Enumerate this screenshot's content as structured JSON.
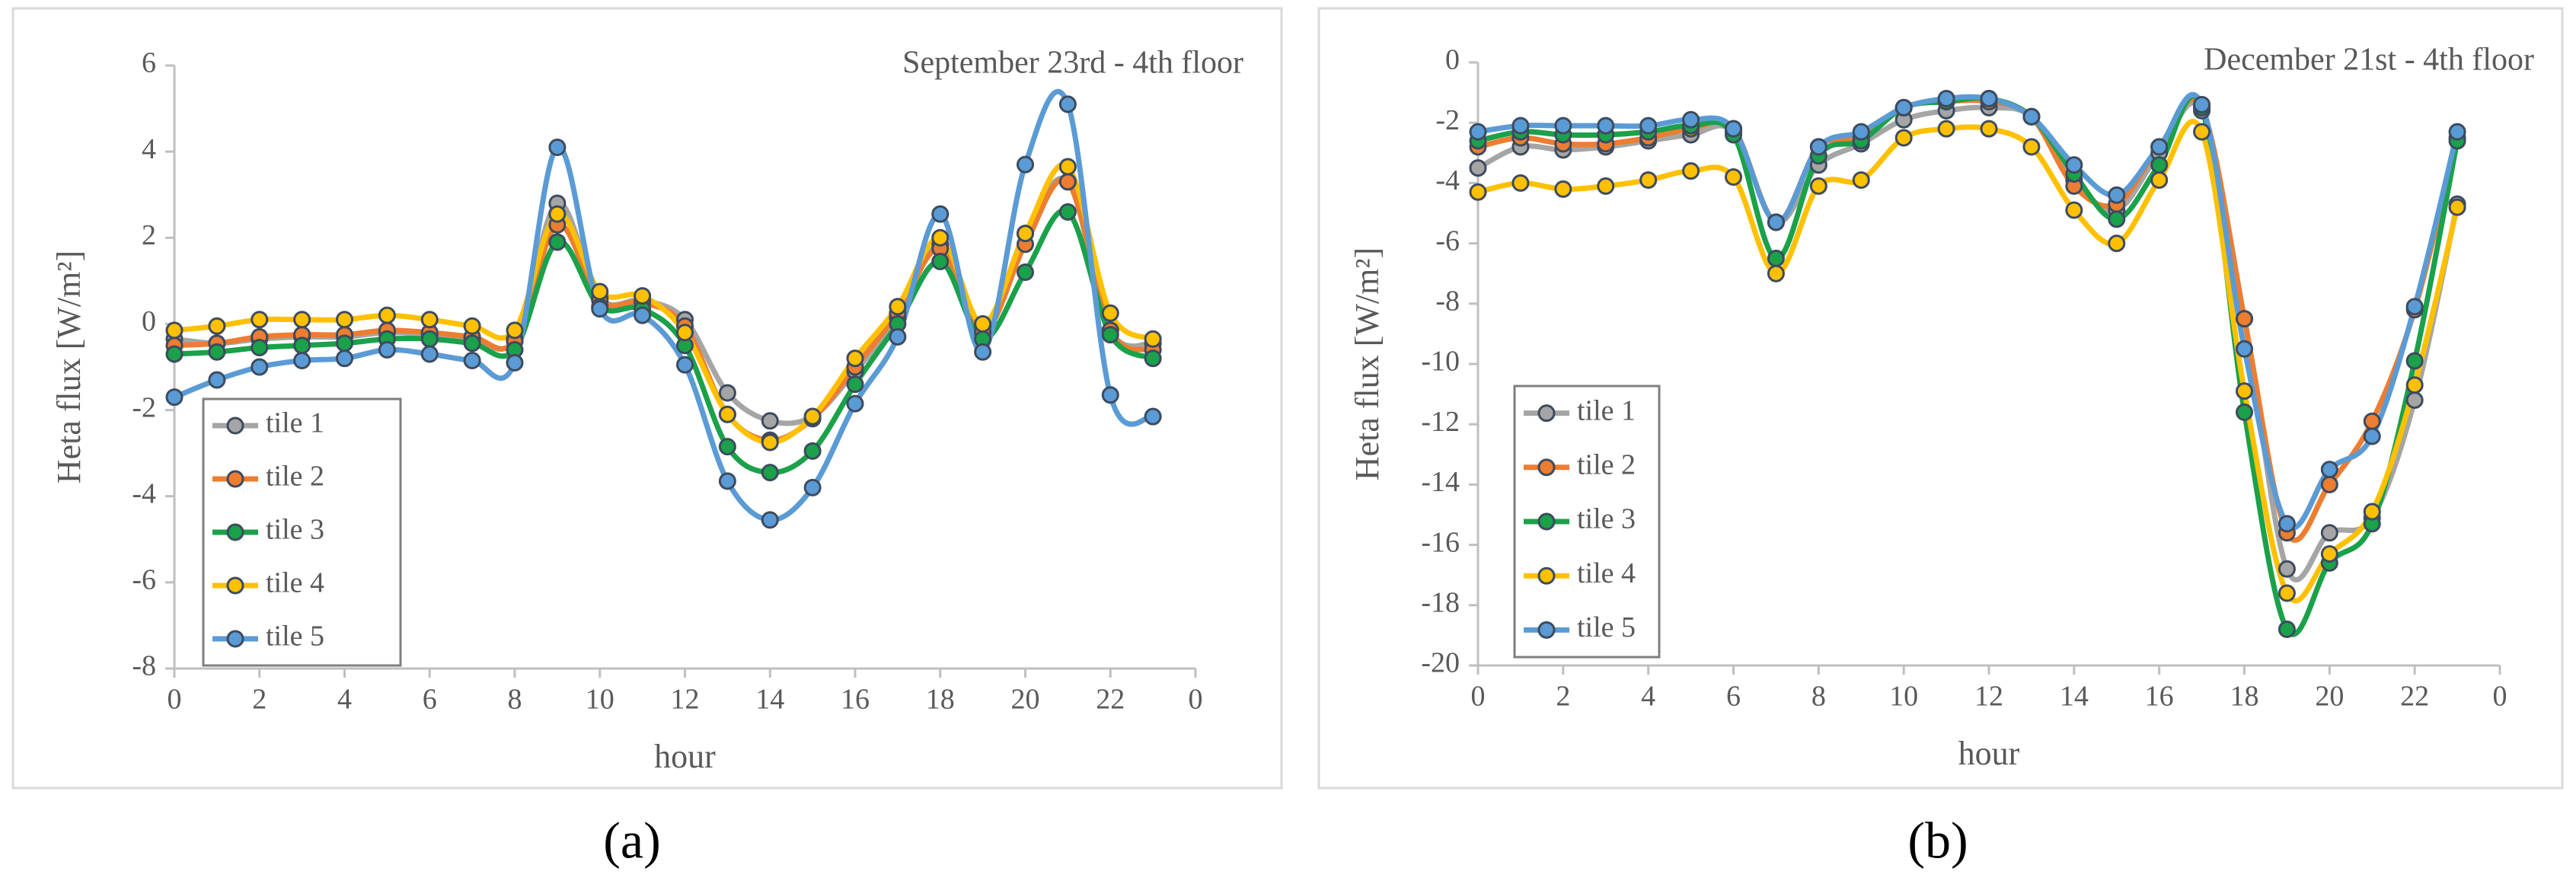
{
  "chart_data": [
    {
      "type": "line",
      "title": "September 23rd - 4th floor",
      "xlabel": "hour",
      "ylabel": "Heta flux [W/m²]",
      "x": [
        0,
        1,
        2,
        3,
        4,
        5,
        6,
        7,
        8,
        9,
        10,
        11,
        12,
        13,
        14,
        15,
        16,
        17,
        18,
        19,
        20,
        21,
        22,
        23
      ],
      "xlim": [
        0,
        24
      ],
      "xticks": [
        0,
        2,
        4,
        6,
        8,
        10,
        12,
        14,
        16,
        18,
        20,
        22,
        {
          "value": 24,
          "label": "0"
        }
      ],
      "ylim": [
        -8,
        6
      ],
      "yticks": [
        -8,
        -6,
        -4,
        -2,
        0,
        2,
        4,
        6
      ],
      "legend": "lower left",
      "smooth": true,
      "series": [
        {
          "name": "tile 1",
          "color": "#a5a5a5",
          "values": [
            -0.35,
            -0.45,
            -0.35,
            -0.3,
            -0.3,
            -0.2,
            -0.25,
            -0.35,
            -0.35,
            2.8,
            0.6,
            0.55,
            0.1,
            -1.6,
            -2.25,
            -2.15,
            -1.1,
            0.15,
            1.85,
            -0.05,
            2.1,
            3.3,
            -0.15,
            -0.45
          ]
        },
        {
          "name": "tile 2",
          "color": "#ed7d31",
          "values": [
            -0.5,
            -0.45,
            -0.3,
            -0.25,
            -0.25,
            -0.15,
            -0.2,
            -0.3,
            -0.4,
            2.3,
            0.55,
            0.5,
            -0.05,
            -2.1,
            -2.7,
            -2.2,
            -1.0,
            0.25,
            1.75,
            -0.2,
            1.85,
            3.3,
            -0.15,
            -0.6
          ]
        },
        {
          "name": "tile 3",
          "color": "#1aa14a",
          "values": [
            -0.7,
            -0.65,
            -0.55,
            -0.5,
            -0.45,
            -0.35,
            -0.35,
            -0.45,
            -0.6,
            1.9,
            0.4,
            0.35,
            -0.5,
            -2.85,
            -3.45,
            -2.95,
            -1.4,
            0.0,
            1.45,
            -0.35,
            1.2,
            2.6,
            -0.25,
            -0.8
          ]
        },
        {
          "name": "tile 4",
          "color": "#ffc000",
          "values": [
            -0.15,
            -0.05,
            0.1,
            0.1,
            0.1,
            0.2,
            0.1,
            -0.05,
            -0.15,
            2.55,
            0.75,
            0.65,
            -0.2,
            -2.1,
            -2.75,
            -2.15,
            -0.8,
            0.4,
            2.0,
            0.0,
            2.1,
            3.65,
            0.25,
            -0.35
          ]
        },
        {
          "name": "tile 5",
          "color": "#5b9bd5",
          "values": [
            -1.7,
            -1.3,
            -1.0,
            -0.85,
            -0.8,
            -0.6,
            -0.7,
            -0.85,
            -0.9,
            4.1,
            0.35,
            0.2,
            -0.95,
            -3.65,
            -4.55,
            -3.8,
            -1.85,
            -0.3,
            2.55,
            -0.65,
            3.7,
            5.1,
            -1.65,
            -2.15
          ]
        }
      ]
    },
    {
      "type": "line",
      "title": "December 21st - 4th floor",
      "xlabel": "hour",
      "ylabel": "Heta flux [W/m²]",
      "x": [
        0,
        1,
        2,
        3,
        4,
        5,
        6,
        7,
        8,
        9,
        10,
        11,
        12,
        13,
        14,
        15,
        16,
        17,
        18,
        19,
        20,
        21,
        22,
        23
      ],
      "xlim": [
        0,
        24
      ],
      "xticks": [
        0,
        2,
        4,
        6,
        8,
        10,
        12,
        14,
        16,
        18,
        20,
        22,
        {
          "value": 24,
          "label": "0"
        }
      ],
      "ylim": [
        -20,
        0
      ],
      "yticks": [
        -20,
        -18,
        -16,
        -14,
        -12,
        -10,
        -8,
        -6,
        -4,
        -2,
        0
      ],
      "legend": "lower left",
      "smooth": true,
      "series": [
        {
          "name": "tile 1",
          "color": "#a5a5a5",
          "values": [
            -3.5,
            -2.8,
            -2.9,
            -2.8,
            -2.6,
            -2.4,
            -2.3,
            -5.3,
            -3.4,
            -2.7,
            -1.9,
            -1.6,
            -1.5,
            -1.8,
            -3.9,
            -4.9,
            -3.0,
            -1.6,
            -8.5,
            -16.8,
            -15.6,
            -15.1,
            -11.2,
            -4.7
          ]
        },
        {
          "name": "tile 2",
          "color": "#ed7d31",
          "values": [
            -2.8,
            -2.5,
            -2.7,
            -2.7,
            -2.5,
            -2.2,
            -2.2,
            -5.3,
            -2.8,
            -2.5,
            -1.5,
            -1.3,
            -1.3,
            -1.8,
            -4.1,
            -4.7,
            -2.8,
            -1.5,
            -8.5,
            -15.6,
            -14.0,
            -11.9,
            -8.2,
            -2.5
          ]
        },
        {
          "name": "tile 3",
          "color": "#1aa14a",
          "values": [
            -2.6,
            -2.3,
            -2.4,
            -2.4,
            -2.3,
            -2.1,
            -2.4,
            -6.5,
            -3.1,
            -2.6,
            -1.5,
            -1.3,
            -1.2,
            -1.8,
            -3.7,
            -5.2,
            -3.4,
            -1.5,
            -11.6,
            -18.8,
            -16.6,
            -15.3,
            -9.9,
            -2.6
          ]
        },
        {
          "name": "tile 4",
          "color": "#ffc000",
          "values": [
            -4.3,
            -4.0,
            -4.2,
            -4.1,
            -3.9,
            -3.6,
            -3.8,
            -7.0,
            -4.1,
            -3.9,
            -2.5,
            -2.2,
            -2.2,
            -2.8,
            -4.9,
            -6.0,
            -3.9,
            -2.3,
            -10.9,
            -17.6,
            -16.3,
            -14.9,
            -10.7,
            -4.8
          ]
        },
        {
          "name": "tile 5",
          "color": "#5b9bd5",
          "values": [
            -2.3,
            -2.1,
            -2.1,
            -2.1,
            -2.1,
            -1.9,
            -2.2,
            -5.3,
            -2.8,
            -2.3,
            -1.5,
            -1.2,
            -1.2,
            -1.8,
            -3.4,
            -4.4,
            -2.8,
            -1.4,
            -9.5,
            -15.3,
            -13.5,
            -12.4,
            -8.1,
            -2.3
          ]
        }
      ]
    }
  ],
  "captions": [
    "(a)",
    "(b)"
  ]
}
